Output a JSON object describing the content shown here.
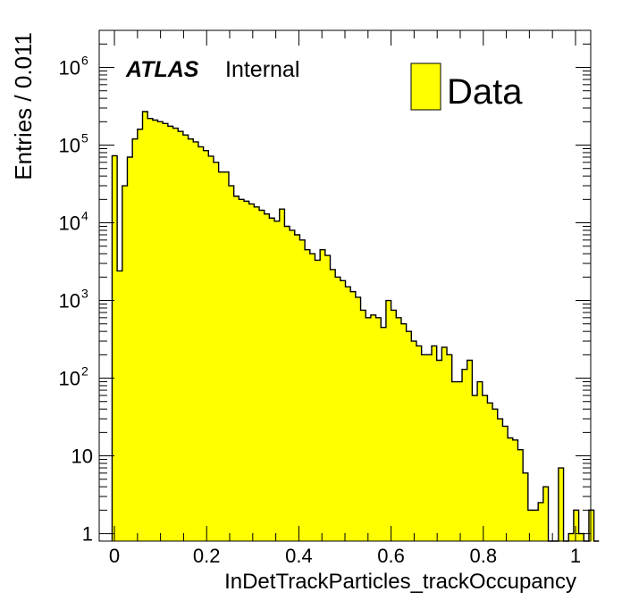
{
  "chart_data": {
    "type": "bar",
    "style": "histogram",
    "title": "",
    "xlabel": "InDetTrackParticles_trackOccupancy",
    "ylabel": "Entries / 0.011",
    "atlas_label": "ATLAS",
    "atlas_status": "Internal",
    "legend": {
      "position": "top-right",
      "entries": [
        "Data"
      ]
    },
    "y_scale": "log",
    "xlim": [
      -0.033,
      1.033
    ],
    "ylim": [
      0.8,
      3000000
    ],
    "grid": false,
    "colors": {
      "fill": "#ffff00",
      "line": "#000000"
    },
    "x_ticks": [
      0,
      0.2,
      0.4,
      0.6,
      0.8,
      1
    ],
    "x_tick_labels": [
      "0",
      "0.2",
      "0.4",
      "0.6",
      "0.8",
      "1"
    ],
    "y_ticks": [
      1,
      10,
      100,
      1000,
      10000,
      100000,
      1000000
    ],
    "y_tick_labels": [
      {
        "base": "1",
        "exp": ""
      },
      {
        "base": "10",
        "exp": ""
      },
      {
        "base": "10",
        "exp": "2"
      },
      {
        "base": "10",
        "exp": "3"
      },
      {
        "base": "10",
        "exp": "4"
      },
      {
        "base": "10",
        "exp": "5"
      },
      {
        "base": "10",
        "exp": "6"
      }
    ],
    "bin_edges_start": -0.005,
    "bin_width": 0.011,
    "series": [
      {
        "name": "Data",
        "values": [
          73000,
          2400,
          30000,
          70000,
          120000,
          160000,
          270000,
          220000,
          210000,
          200000,
          190000,
          175000,
          165000,
          150000,
          135000,
          120000,
          110000,
          95000,
          85000,
          72000,
          60000,
          45000,
          45000,
          30000,
          22000,
          20000,
          19000,
          17500,
          16000,
          14500,
          13000,
          11500,
          10500,
          15000,
          9000,
          8000,
          7000,
          6000,
          4500,
          4000,
          3300,
          4500,
          3800,
          2500,
          2000,
          1800,
          1500,
          1300,
          1100,
          750,
          600,
          650,
          600,
          450,
          1000,
          750,
          600,
          500,
          400,
          300,
          260,
          200,
          200,
          260,
          170,
          250,
          200,
          90,
          90,
          130,
          170,
          60,
          90,
          60,
          48,
          40,
          30,
          24,
          17,
          16,
          12,
          6,
          2,
          2,
          2.5,
          4,
          0,
          0,
          7,
          0,
          1,
          2,
          1,
          0,
          2,
          0
        ]
      }
    ]
  }
}
